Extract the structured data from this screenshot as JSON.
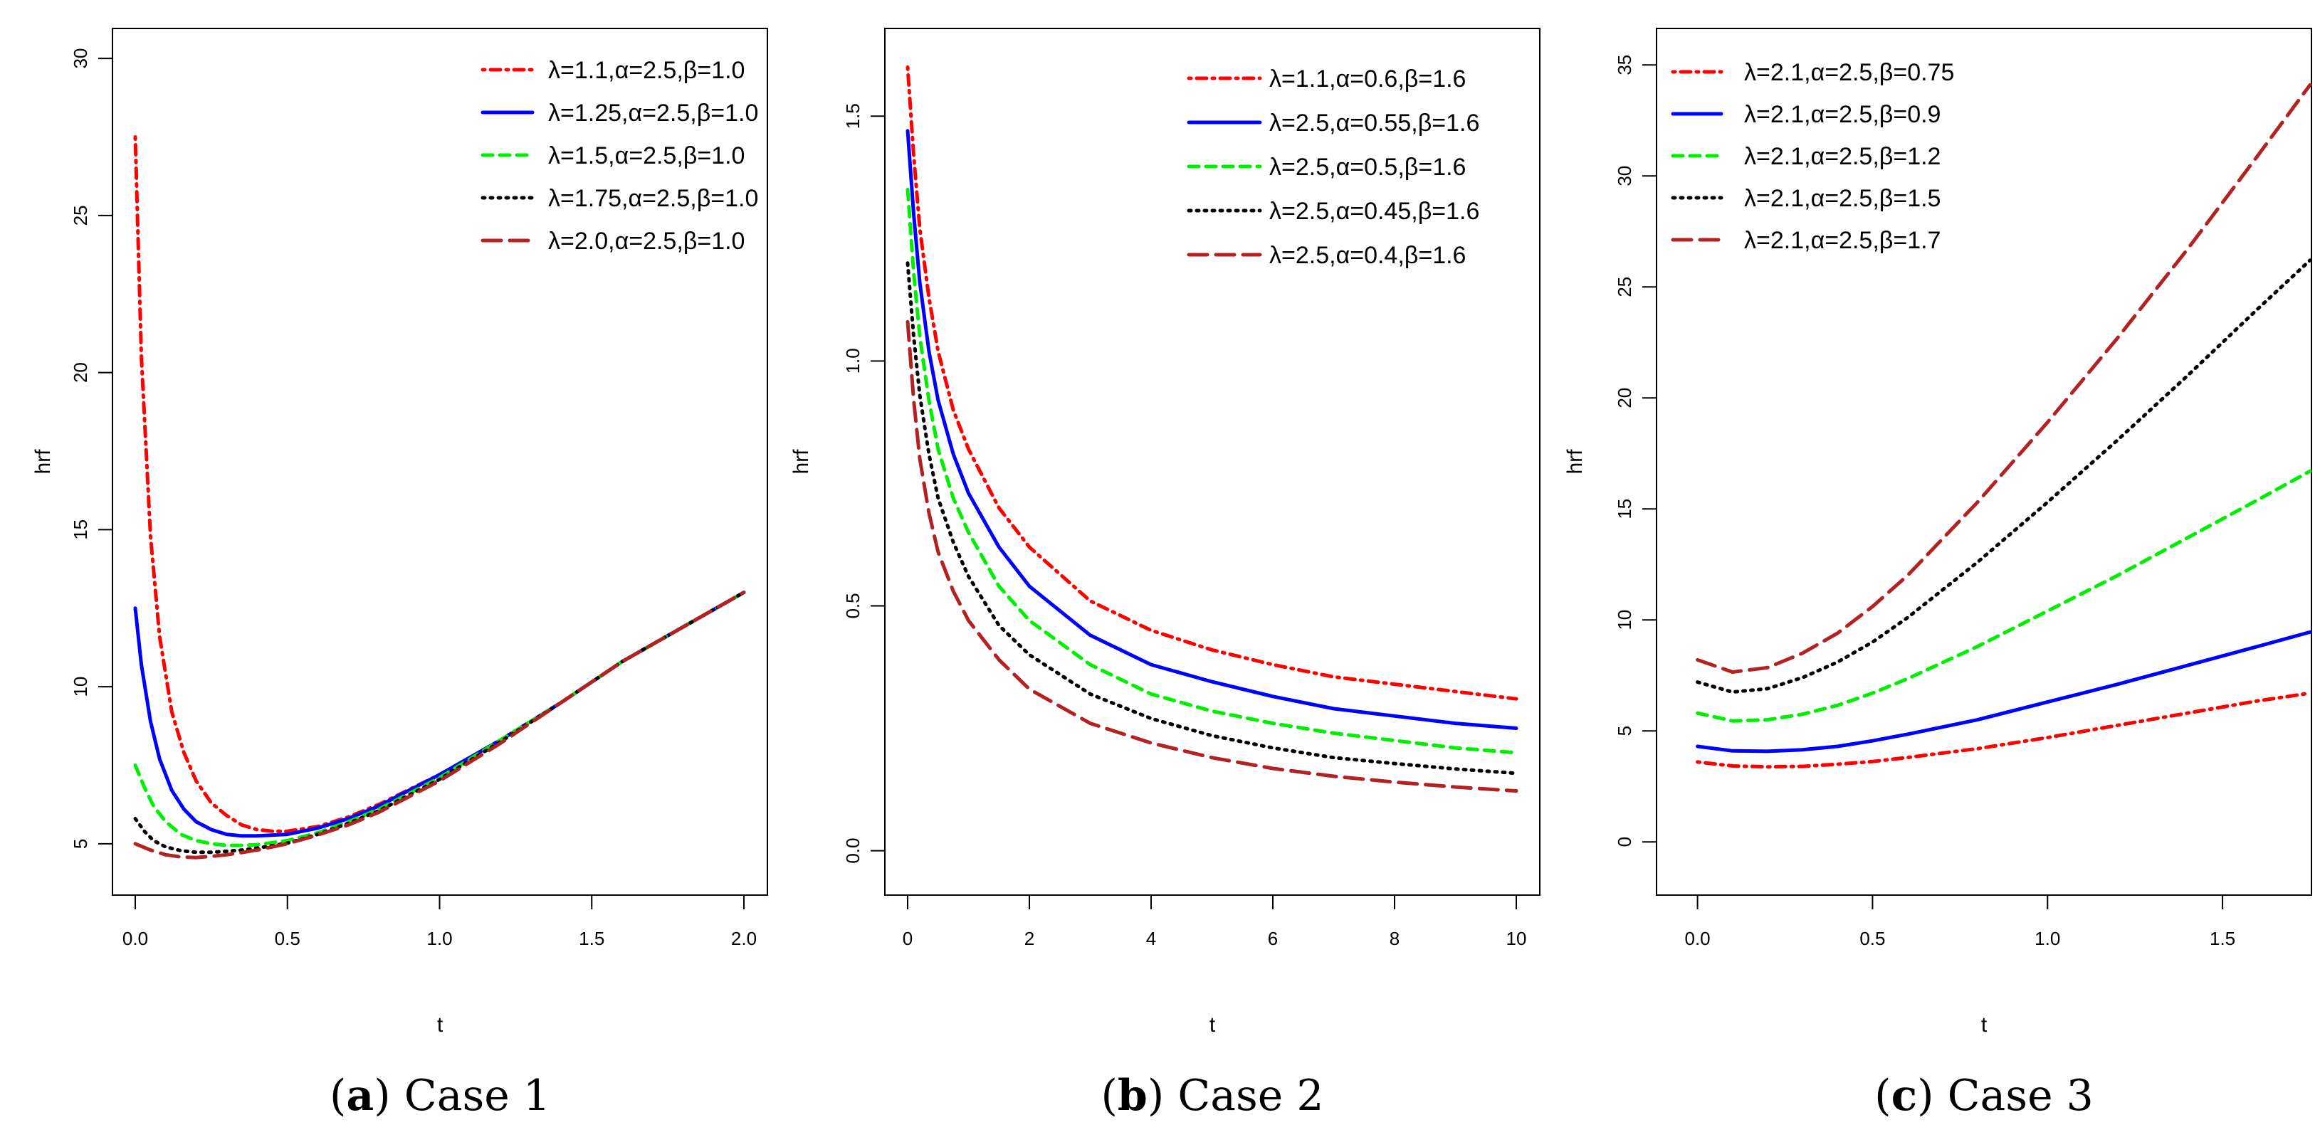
{
  "chart_data": [
    {
      "type": "line",
      "caption_label": "a",
      "caption_text": "Case 1",
      "xlabel": "t",
      "ylabel": "hrf",
      "xlim": [
        0,
        2.0
      ],
      "ylim": [
        4,
        30.5
      ],
      "xticks": [
        0.0,
        0.5,
        1.0,
        1.5,
        2.0
      ],
      "xtick_labels": [
        "0.0",
        "0.5",
        "1.0",
        "1.5",
        "2.0"
      ],
      "yticks": [
        5,
        10,
        15,
        20,
        25,
        30
      ],
      "ytick_labels": [
        "5",
        "10",
        "15",
        "20",
        "25",
        "30"
      ],
      "legend_position": "top-right",
      "series": [
        {
          "name": "λ=1.1,α=2.5,β=1.0",
          "color": "#ff0000",
          "style": "dotdash",
          "x": [
            0.0,
            0.02,
            0.05,
            0.08,
            0.12,
            0.16,
            0.2,
            0.25,
            0.3,
            0.35,
            0.4,
            0.45,
            0.5,
            0.6,
            0.7,
            0.8,
            1.0,
            1.2,
            1.4,
            1.6,
            1.8,
            2.0
          ],
          "y": [
            27.5,
            20.5,
            14.8,
            11.6,
            9.2,
            7.9,
            7.0,
            6.3,
            5.9,
            5.6,
            5.45,
            5.4,
            5.4,
            5.55,
            5.85,
            6.25,
            7.2,
            8.3,
            9.5,
            10.8,
            11.9,
            13.0
          ]
        },
        {
          "name": "λ=1.25,α=2.5,β=1.0",
          "color": "#0000ff",
          "style": "solid",
          "x": [
            0.0,
            0.02,
            0.05,
            0.08,
            0.12,
            0.16,
            0.2,
            0.25,
            0.3,
            0.35,
            0.4,
            0.5,
            0.6,
            0.7,
            0.8,
            1.0,
            1.2,
            1.4,
            1.6,
            1.8,
            2.0
          ],
          "y": [
            12.5,
            10.7,
            8.9,
            7.7,
            6.7,
            6.1,
            5.7,
            5.45,
            5.3,
            5.25,
            5.25,
            5.3,
            5.5,
            5.8,
            6.2,
            7.2,
            8.3,
            9.5,
            10.8,
            11.9,
            13.0
          ]
        },
        {
          "name": "λ=1.5,α=2.5,β=1.0",
          "color": "#00ee00",
          "style": "dashed",
          "x": [
            0.0,
            0.03,
            0.06,
            0.1,
            0.15,
            0.2,
            0.25,
            0.3,
            0.35,
            0.4,
            0.5,
            0.6,
            0.7,
            0.8,
            1.0,
            1.2,
            1.4,
            1.6,
            1.8,
            2.0
          ],
          "y": [
            7.5,
            6.8,
            6.2,
            5.7,
            5.3,
            5.1,
            5.0,
            4.95,
            4.95,
            4.97,
            5.1,
            5.35,
            5.7,
            6.1,
            7.1,
            8.3,
            9.5,
            10.8,
            11.9,
            13.0
          ]
        },
        {
          "name": "λ=1.75,α=2.5,β=1.0",
          "color": "#000000",
          "style": "dotted",
          "x": [
            0.0,
            0.03,
            0.06,
            0.1,
            0.15,
            0.2,
            0.25,
            0.3,
            0.35,
            0.4,
            0.5,
            0.6,
            0.7,
            0.8,
            1.0,
            1.2,
            1.4,
            1.6,
            1.8,
            2.0
          ],
          "y": [
            5.8,
            5.4,
            5.1,
            4.9,
            4.78,
            4.73,
            4.73,
            4.76,
            4.8,
            4.86,
            5.02,
            5.3,
            5.65,
            6.05,
            7.05,
            8.25,
            9.5,
            10.8,
            11.9,
            13.0
          ]
        },
        {
          "name": "λ=2.0,α=2.5,β=1.0",
          "color": "#b22222",
          "style": "longdash",
          "x": [
            0.0,
            0.05,
            0.1,
            0.15,
            0.2,
            0.25,
            0.3,
            0.35,
            0.4,
            0.5,
            0.6,
            0.7,
            0.8,
            1.0,
            1.2,
            1.4,
            1.6,
            1.8,
            2.0
          ],
          "y": [
            5.0,
            4.8,
            4.65,
            4.58,
            4.56,
            4.6,
            4.65,
            4.72,
            4.8,
            5.0,
            5.28,
            5.6,
            6.0,
            7.0,
            8.2,
            9.5,
            10.8,
            11.9,
            13.0
          ]
        }
      ]
    },
    {
      "type": "line",
      "caption_label": "b",
      "caption_text": "Case 2",
      "xlabel": "t",
      "ylabel": "hrf",
      "xlim": [
        0,
        10
      ],
      "ylim": [
        -0.05,
        1.65
      ],
      "xticks": [
        0,
        2,
        4,
        6,
        8,
        10
      ],
      "xtick_labels": [
        "0",
        "2",
        "4",
        "6",
        "8",
        "10"
      ],
      "yticks": [
        0.0,
        0.5,
        1.0,
        1.5
      ],
      "ytick_labels": [
        "0.0",
        "0.5",
        "1.0",
        "1.5"
      ],
      "legend_position": "top-right",
      "series": [
        {
          "name": "λ=1.1,α=0.6,β=1.6",
          "color": "#ff0000",
          "style": "dotdash",
          "x": [
            0.0,
            0.1,
            0.2,
            0.35,
            0.5,
            0.75,
            1.0,
            1.5,
            2.0,
            3.0,
            4.0,
            5.0,
            6.0,
            7.0,
            8.0,
            9.0,
            10.0
          ],
          "y": [
            1.6,
            1.42,
            1.27,
            1.13,
            1.02,
            0.9,
            0.82,
            0.7,
            0.62,
            0.51,
            0.45,
            0.41,
            0.38,
            0.355,
            0.34,
            0.325,
            0.31
          ]
        },
        {
          "name": "λ=2.5,α=0.55,β=1.6",
          "color": "#0000ff",
          "style": "solid",
          "x": [
            0.0,
            0.1,
            0.2,
            0.35,
            0.5,
            0.75,
            1.0,
            1.5,
            2.0,
            3.0,
            4.0,
            5.0,
            6.0,
            7.0,
            8.0,
            9.0,
            10.0
          ],
          "y": [
            1.47,
            1.3,
            1.16,
            1.02,
            0.92,
            0.81,
            0.73,
            0.62,
            0.54,
            0.44,
            0.38,
            0.345,
            0.315,
            0.29,
            0.275,
            0.26,
            0.25
          ]
        },
        {
          "name": "λ=2.5,α=0.5,β=1.6",
          "color": "#00ee00",
          "style": "dashed",
          "x": [
            0.0,
            0.1,
            0.2,
            0.35,
            0.5,
            0.75,
            1.0,
            1.5,
            2.0,
            3.0,
            4.0,
            5.0,
            6.0,
            7.0,
            8.0,
            9.0,
            10.0
          ],
          "y": [
            1.35,
            1.18,
            1.05,
            0.92,
            0.82,
            0.72,
            0.65,
            0.54,
            0.47,
            0.38,
            0.32,
            0.285,
            0.26,
            0.24,
            0.225,
            0.21,
            0.2
          ]
        },
        {
          "name": "λ=2.5,α=0.45,β=1.6",
          "color": "#000000",
          "style": "dotted",
          "x": [
            0.0,
            0.1,
            0.2,
            0.35,
            0.5,
            0.75,
            1.0,
            1.5,
            2.0,
            3.0,
            4.0,
            5.0,
            6.0,
            7.0,
            8.0,
            9.0,
            10.0
          ],
          "y": [
            1.2,
            1.05,
            0.93,
            0.81,
            0.72,
            0.63,
            0.56,
            0.46,
            0.4,
            0.32,
            0.27,
            0.235,
            0.21,
            0.19,
            0.178,
            0.167,
            0.158
          ]
        },
        {
          "name": "λ=2.5,α=0.4,β=1.6",
          "color": "#b22222",
          "style": "longdash",
          "x": [
            0.0,
            0.1,
            0.2,
            0.35,
            0.5,
            0.75,
            1.0,
            1.5,
            2.0,
            3.0,
            4.0,
            5.0,
            6.0,
            7.0,
            8.0,
            9.0,
            10.0
          ],
          "y": [
            1.08,
            0.92,
            0.8,
            0.69,
            0.61,
            0.53,
            0.47,
            0.39,
            0.33,
            0.26,
            0.22,
            0.19,
            0.168,
            0.152,
            0.14,
            0.13,
            0.122
          ]
        }
      ]
    },
    {
      "type": "line",
      "caption_label": "c",
      "caption_text": "Case 3",
      "xlabel": "t",
      "ylabel": "hrf",
      "xlim": [
        -0.05,
        1.75
      ],
      "ylim": [
        -1.5,
        36
      ],
      "xticks": [
        0.0,
        0.5,
        1.0,
        1.5
      ],
      "xtick_labels": [
        "0.0",
        "0.5",
        "1.0",
        "1.5"
      ],
      "yticks": [
        0,
        5,
        10,
        15,
        20,
        25,
        30,
        35
      ],
      "ytick_labels": [
        "0",
        "5",
        "10",
        "15",
        "20",
        "25",
        "30",
        "35"
      ],
      "legend_position": "top-left",
      "series": [
        {
          "name": "λ=2.1,α=2.5,β=0.75",
          "color": "#ff0000",
          "style": "dotdash",
          "x": [
            0.0,
            0.1,
            0.2,
            0.3,
            0.4,
            0.5,
            0.6,
            0.8,
            1.0,
            1.2,
            1.4,
            1.6,
            1.75
          ],
          "y": [
            3.6,
            3.42,
            3.38,
            3.4,
            3.5,
            3.62,
            3.8,
            4.2,
            4.7,
            5.25,
            5.8,
            6.35,
            6.7
          ]
        },
        {
          "name": "λ=2.1,α=2.5,β=0.9",
          "color": "#0000ff",
          "style": "solid",
          "x": [
            0.0,
            0.1,
            0.2,
            0.3,
            0.4,
            0.5,
            0.6,
            0.8,
            1.0,
            1.2,
            1.4,
            1.6,
            1.75
          ],
          "y": [
            4.3,
            4.1,
            4.08,
            4.15,
            4.3,
            4.55,
            4.85,
            5.5,
            6.3,
            7.1,
            7.95,
            8.8,
            9.45
          ]
        },
        {
          "name": "λ=2.1,α=2.5,β=1.2",
          "color": "#00ee00",
          "style": "dashed",
          "x": [
            0.0,
            0.1,
            0.2,
            0.3,
            0.4,
            0.5,
            0.6,
            0.8,
            1.0,
            1.2,
            1.4,
            1.6,
            1.75
          ],
          "y": [
            5.8,
            5.45,
            5.5,
            5.75,
            6.15,
            6.7,
            7.35,
            8.8,
            10.4,
            12.0,
            13.7,
            15.4,
            16.7
          ]
        },
        {
          "name": "λ=2.1,α=2.5,β=1.5",
          "color": "#000000",
          "style": "dotted",
          "x": [
            0.0,
            0.1,
            0.2,
            0.3,
            0.4,
            0.5,
            0.6,
            0.8,
            1.0,
            1.2,
            1.4,
            1.6,
            1.75
          ],
          "y": [
            7.2,
            6.75,
            6.9,
            7.4,
            8.1,
            9.0,
            10.1,
            12.6,
            15.3,
            18.1,
            21.0,
            24.0,
            26.2
          ]
        },
        {
          "name": "λ=2.1,α=2.5,β=1.7",
          "color": "#b22222",
          "style": "longdash",
          "x": [
            0.0,
            0.1,
            0.2,
            0.3,
            0.4,
            0.5,
            0.6,
            0.8,
            1.0,
            1.2,
            1.4,
            1.6,
            1.75
          ],
          "y": [
            8.2,
            7.65,
            7.85,
            8.5,
            9.4,
            10.6,
            12.0,
            15.3,
            18.9,
            22.7,
            26.7,
            30.9,
            34.1
          ]
        }
      ]
    }
  ]
}
